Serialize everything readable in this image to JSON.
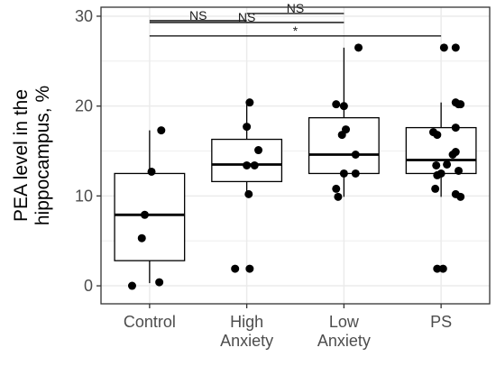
{
  "chart_data": {
    "type": "box",
    "title": "",
    "xlabel": "",
    "ylabel_lines": [
      "PEA level in the",
      "hippocampus, %"
    ],
    "ylim": [
      -2,
      31
    ],
    "yticks": [
      0,
      10,
      20,
      30
    ],
    "grid": true,
    "legend": "none",
    "categories": [
      {
        "id": "control",
        "label_lines": [
          "Control"
        ]
      },
      {
        "id": "high-anxiety",
        "label_lines": [
          "High",
          "Anxiety"
        ]
      },
      {
        "id": "low-anxiety",
        "label_lines": [
          "Low",
          "Anxiety"
        ]
      },
      {
        "id": "ps",
        "label_lines": [
          "PS"
        ]
      }
    ],
    "boxes": [
      {
        "q1": 2.8,
        "median": 7.9,
        "q3": 12.5,
        "whisker_low": 0.3,
        "whisker_high": 17.3
      },
      {
        "q1": 11.6,
        "median": 13.5,
        "q3": 16.3,
        "whisker_low": 10.2,
        "whisker_high": 20.4
      },
      {
        "q1": 12.5,
        "median": 14.6,
        "q3": 18.7,
        "whisker_low": 9.9,
        "whisker_high": 26.5
      },
      {
        "q1": 12.5,
        "median": 14.0,
        "q3": 17.6,
        "whisker_low": 9.9,
        "whisker_high": 20.4
      }
    ],
    "points": [
      [
        17.3,
        12.7,
        7.9,
        5.3,
        0.4,
        0.0
      ],
      [
        20.4,
        17.7,
        15.1,
        13.4,
        13.4,
        10.2,
        1.9,
        1.9
      ],
      [
        26.5,
        20.2,
        20.0,
        17.4,
        16.8,
        14.6,
        12.5,
        12.5,
        10.8,
        9.9
      ],
      [
        26.5,
        26.5,
        20.4,
        20.2,
        20.2,
        17.6,
        17.1,
        16.8,
        14.9,
        14.6,
        13.5,
        13.4,
        12.8,
        12.5,
        12.3,
        10.8,
        10.2,
        9.9,
        1.9,
        1.9
      ]
    ],
    "jitter": [
      [
        0.12,
        0.02,
        -0.05,
        -0.08,
        0.1,
        -0.18
      ],
      [
        0.03,
        0.0,
        0.12,
        0.0,
        0.08,
        0.02,
        -0.12,
        0.03
      ],
      [
        0.15,
        -0.08,
        0.0,
        0.02,
        -0.02,
        0.12,
        0.12,
        0.0,
        -0.08,
        -0.06
      ],
      [
        0.03,
        0.15,
        0.15,
        0.18,
        0.2,
        0.15,
        -0.08,
        -0.04,
        0.15,
        0.12,
        0.06,
        -0.05,
        0.18,
        0.0,
        -0.04,
        -0.06,
        0.15,
        0.2,
        -0.04,
        0.02
      ]
    ],
    "significance": [
      {
        "from": 0,
        "to": 1,
        "y": 29.5,
        "label": "NS"
      },
      {
        "from": 1,
        "to": 2,
        "y": 30.3,
        "label": "NS"
      },
      {
        "from": 0,
        "to": 2,
        "y": 29.3,
        "label": "NS"
      },
      {
        "from": 0,
        "to": 3,
        "y": 27.8,
        "label": "*"
      }
    ],
    "colors": {
      "panel_border": "#333333",
      "grid": "#ebebeb",
      "box_line": "#000000",
      "point": "#000000",
      "tick_text": "#4d4d4d"
    }
  }
}
